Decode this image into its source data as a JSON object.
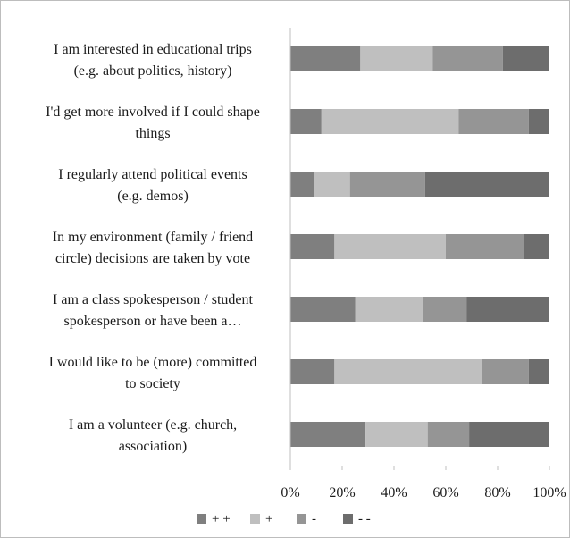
{
  "chart_data": {
    "type": "bar",
    "orientation": "horizontal",
    "stacked": "percent",
    "categories": [
      [
        "I am interested in educational trips",
        "(e.g. about politics, history)"
      ],
      [
        "I'd get more involved if I could shape",
        "things"
      ],
      [
        "I regularly attend political events",
        "(e.g. demos)"
      ],
      [
        "In my environment (family / friend",
        "circle) decisions are taken by vote"
      ],
      [
        "I am a class spokesperson / student",
        "spokesperson or have been a…"
      ],
      [
        "I would like to be (more) committed",
        "to society"
      ],
      [
        "I am a volunteer (e.g. church,",
        "association)"
      ]
    ],
    "series": [
      {
        "name": "+ +",
        "color": "#7f7f7f",
        "values": [
          27,
          12,
          9,
          17,
          25,
          17,
          29
        ]
      },
      {
        "name": "+",
        "color": "#bfbfbf",
        "values": [
          28,
          53,
          14,
          43,
          26,
          57,
          24
        ]
      },
      {
        "name": "-",
        "color": "#959595",
        "values": [
          27,
          27,
          29,
          30,
          17,
          18,
          16
        ]
      },
      {
        "name": "- -",
        "color": "#6d6d6d",
        "values": [
          18,
          8,
          48,
          10,
          32,
          8,
          31
        ]
      }
    ],
    "x_ticks": [
      "0%",
      "20%",
      "40%",
      "60%",
      "80%",
      "100%"
    ],
    "xlim": [
      0,
      100
    ],
    "grid": false,
    "legend_position": "bottom",
    "title": "",
    "xlabel": "",
    "ylabel": ""
  }
}
